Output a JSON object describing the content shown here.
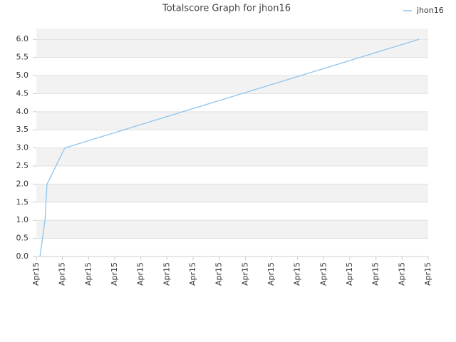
{
  "chart_data": {
    "type": "line",
    "title": "Totalscore Graph for jhon16",
    "x": [
      0.14,
      0.33,
      0.41,
      1.09,
      14.64
    ],
    "series": [
      {
        "name": "jhon16",
        "color": "#90c4ec",
        "values": [
          0,
          1.0,
          2.0,
          3.0,
          6.0
        ]
      }
    ],
    "xlim": [
      0,
      15
    ],
    "xticks": [
      {
        "value": 0,
        "label": "Apr15"
      },
      {
        "value": 1,
        "label": "Apr15"
      },
      {
        "value": 2,
        "label": "Apr15"
      },
      {
        "value": 3,
        "label": "Apr15"
      },
      {
        "value": 4,
        "label": "Apr15"
      },
      {
        "value": 5,
        "label": "Apr15"
      },
      {
        "value": 6,
        "label": "Apr15"
      },
      {
        "value": 7,
        "label": "Apr15"
      },
      {
        "value": 8,
        "label": "Apr15"
      },
      {
        "value": 9,
        "label": "Apr15"
      },
      {
        "value": 10,
        "label": "Apr15"
      },
      {
        "value": 11,
        "label": "Apr15"
      },
      {
        "value": 12,
        "label": "Apr15"
      },
      {
        "value": 13,
        "label": "Apr15"
      },
      {
        "value": 14,
        "label": "Apr15"
      },
      {
        "value": 15,
        "label": "Apr15"
      }
    ],
    "ylim": [
      0,
      6.3
    ],
    "yticks": [
      {
        "value": 0,
        "label": "0.0"
      },
      0.5,
      {
        "value": 1,
        "label": "1.0"
      },
      1.5,
      {
        "value": 2,
        "label": "2.0"
      },
      2.5,
      {
        "value": 3,
        "label": "3.0"
      },
      3.5,
      {
        "value": 4,
        "label": "4.0"
      },
      4.5,
      {
        "value": 5,
        "label": "5.0"
      },
      5.5,
      {
        "value": 6,
        "label": "6.0"
      }
    ],
    "grid": true,
    "legend": "top-right"
  }
}
